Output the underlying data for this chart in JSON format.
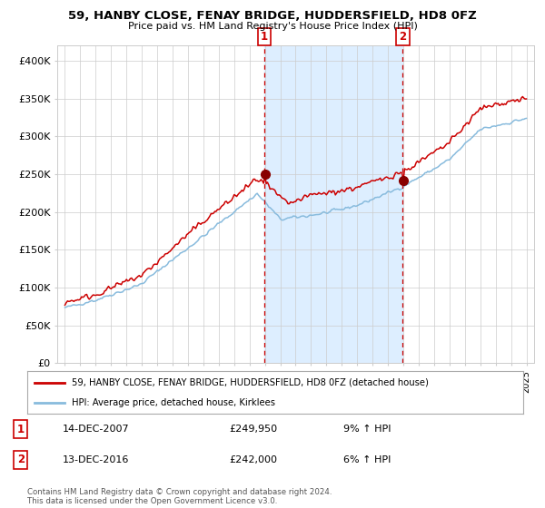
{
  "title": "59, HANBY CLOSE, FENAY BRIDGE, HUDDERSFIELD, HD8 0FZ",
  "subtitle": "Price paid vs. HM Land Registry's House Price Index (HPI)",
  "legend_line1": "59, HANBY CLOSE, FENAY BRIDGE, HUDDERSFIELD, HD8 0FZ (detached house)",
  "legend_line2": "HPI: Average price, detached house, Kirklees",
  "annotation1_label": "1",
  "annotation1_date": "14-DEC-2007",
  "annotation1_price": "£249,950",
  "annotation1_hpi": "9% ↑ HPI",
  "annotation2_label": "2",
  "annotation2_date": "13-DEC-2016",
  "annotation2_price": "£242,000",
  "annotation2_hpi": "6% ↑ HPI",
  "footnote": "Contains HM Land Registry data © Crown copyright and database right 2024.\nThis data is licensed under the Open Government Licence v3.0.",
  "red_color": "#cc0000",
  "blue_color": "#88bbdd",
  "shade_color": "#ddeeff",
  "background_color": "#ffffff",
  "grid_color": "#cccccc",
  "marker1_x_year": 2007.96,
  "marker1_y": 249950,
  "marker2_x_year": 2016.96,
  "marker2_y": 242000,
  "vline1_x": 2007.96,
  "vline2_x": 2016.96,
  "ylim": [
    0,
    420000
  ],
  "xlim_start": 1994.5,
  "xlim_end": 2025.5,
  "yticks": [
    0,
    50000,
    100000,
    150000,
    200000,
    250000,
    300000,
    350000,
    400000
  ],
  "ytick_labels": [
    "£0",
    "£50K",
    "£100K",
    "£150K",
    "£200K",
    "£250K",
    "£300K",
    "£350K",
    "£400K"
  ]
}
